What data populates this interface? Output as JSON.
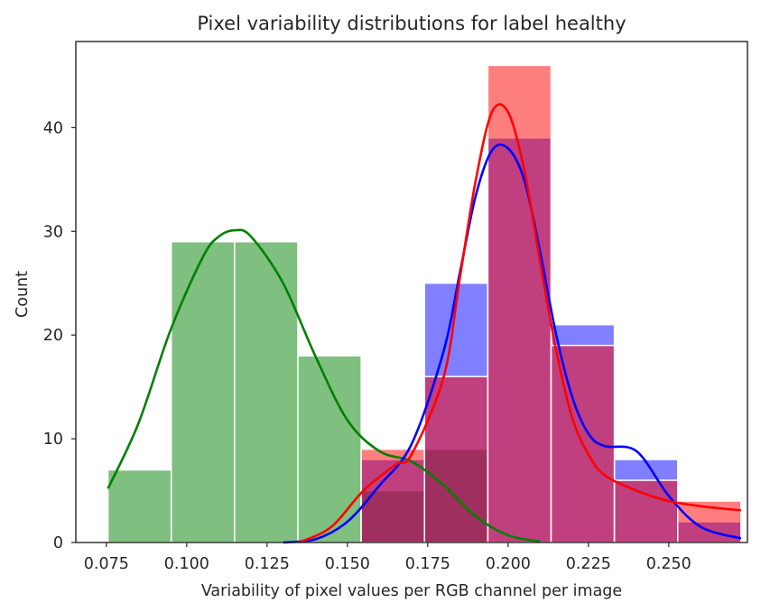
{
  "chart_data": {
    "type": "bar",
    "title": "Pixel variability distributions for label healthy",
    "xlabel": "Variability of pixel values per RGB channel per image",
    "ylabel": "Count",
    "xlim": [
      0.0655,
      0.2745
    ],
    "ylim": [
      0,
      48.3
    ],
    "xticks": [
      0.075,
      0.1,
      0.125,
      0.15,
      0.175,
      0.2,
      0.225,
      0.25
    ],
    "xtick_labels": [
      "0.075",
      "0.100",
      "0.125",
      "0.150",
      "0.175",
      "0.200",
      "0.225",
      "0.250"
    ],
    "yticks": [
      0,
      10,
      20,
      30,
      40
    ],
    "ytick_labels": [
      "0",
      "10",
      "20",
      "30",
      "40"
    ],
    "grid": false,
    "legend": "none",
    "bin_edges": [
      0.0755,
      0.0952,
      0.1149,
      0.1346,
      0.1543,
      0.174,
      0.1937,
      0.2134,
      0.2331,
      0.2528,
      0.2725
    ],
    "series": [
      {
        "color": "#008000",
        "fill_opacity": 0.5,
        "values": [
          7,
          29,
          29,
          18,
          5,
          9,
          0,
          0,
          0,
          0
        ],
        "kde": {
          "x": [
            0.0755,
            0.085,
            0.095,
            0.105,
            0.11,
            0.115,
            0.12,
            0.13,
            0.14,
            0.15,
            0.16,
            0.17,
            0.18,
            0.19,
            0.2,
            0.21
          ],
          "y": [
            5.2,
            11.5,
            20.5,
            27.5,
            29.5,
            30.1,
            29.5,
            25.0,
            18.0,
            11.8,
            8.8,
            7.8,
            5.5,
            2.5,
            0.7,
            0.1
          ]
        }
      },
      {
        "color": "#0000ff",
        "fill_opacity": 0.5,
        "values": [
          0,
          0,
          0,
          0,
          8,
          25,
          39,
          21,
          8,
          2
        ],
        "kde": {
          "x": [
            0.13,
            0.14,
            0.15,
            0.16,
            0.17,
            0.18,
            0.185,
            0.19,
            0.195,
            0.2,
            0.205,
            0.21,
            0.215,
            0.22,
            0.225,
            0.23,
            0.24,
            0.25,
            0.26,
            0.2725
          ],
          "y": [
            0.0,
            0.3,
            2.0,
            5.5,
            9.5,
            18.5,
            26.0,
            33.5,
            37.8,
            38.0,
            35.0,
            28.0,
            20.0,
            14.0,
            10.5,
            9.3,
            8.8,
            4.5,
            1.5,
            0.4
          ]
        }
      },
      {
        "color": "#ff0000",
        "fill_opacity": 0.5,
        "values": [
          0,
          0,
          0,
          0,
          9,
          16,
          46,
          19,
          6,
          4
        ],
        "kde": {
          "x": [
            0.135,
            0.145,
            0.155,
            0.165,
            0.17,
            0.18,
            0.185,
            0.19,
            0.195,
            0.2,
            0.205,
            0.21,
            0.215,
            0.22,
            0.225,
            0.23,
            0.24,
            0.25,
            0.26,
            0.2725
          ],
          "y": [
            0.0,
            1.5,
            5.0,
            7.5,
            8.5,
            16.0,
            25.5,
            35.0,
            41.5,
            41.5,
            36.0,
            27.0,
            18.5,
            12.0,
            8.5,
            6.5,
            5.0,
            4.0,
            3.5,
            3.1
          ]
        }
      }
    ]
  }
}
